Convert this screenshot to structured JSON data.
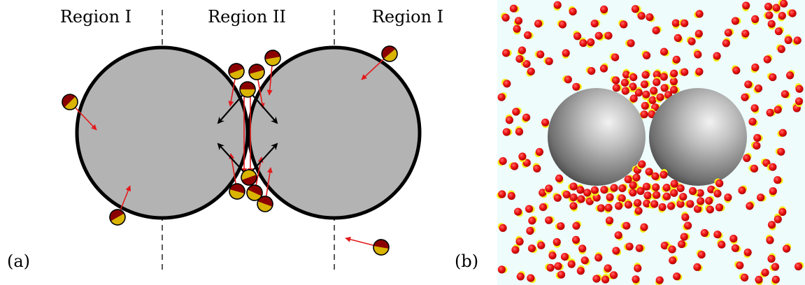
{
  "panel_a": {
    "panel_label": "(a)",
    "region_labels": [
      "Region I",
      "Region II",
      "Region I"
    ]
  },
  "panel_b": {
    "panel_label": "(b)"
  },
  "colors": {
    "colloid_fill": "#b3b3b3",
    "colloid_stroke": "#000000",
    "particle_dark": "#8b0000",
    "particle_gold": "#d9b400",
    "arrow_red": "#e31a1c",
    "arrow_black": "#000000",
    "sim_background": "#eefcfc",
    "sim_red": "#e8131b",
    "sim_yellow": "#f4ee1a"
  }
}
